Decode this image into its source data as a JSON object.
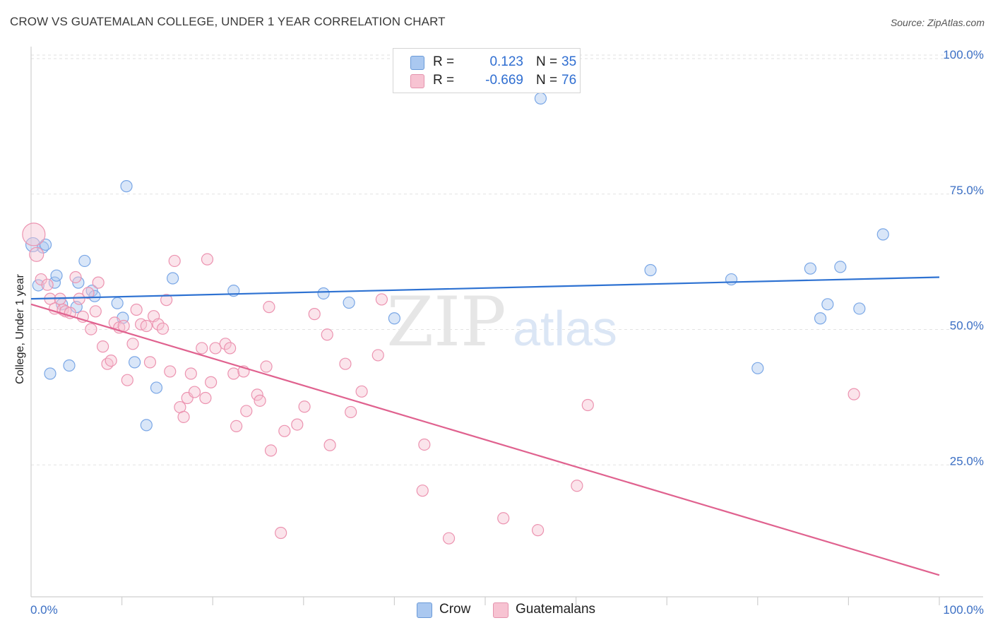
{
  "title": "CROW VS GUATEMALAN COLLEGE, UNDER 1 YEAR CORRELATION CHART",
  "source": "Source: ZipAtlas.com",
  "watermark": {
    "zip": "ZIP",
    "atlas": "atlas"
  },
  "legend": {
    "rows": [
      {
        "r_label": "R =",
        "r_value": "0.123",
        "n_label": "N =",
        "n_value": "35",
        "color": "#aac8f0",
        "border": "#6a9ad8"
      },
      {
        "r_label": "R =",
        "r_value": "-0.669",
        "n_label": "N =",
        "n_value": "76",
        "color": "#f7c3d2",
        "border": "#e493ad"
      }
    ]
  },
  "bottom_legend": [
    {
      "label": "Crow",
      "color": "#aac8f0",
      "border": "#6a9ad8"
    },
    {
      "label": "Guatemalans",
      "color": "#f7c3d2",
      "border": "#e493ad"
    }
  ],
  "chart_data": {
    "type": "scatter",
    "title": "CROW VS GUATEMALAN COLLEGE, UNDER 1 YEAR CORRELATION CHART",
    "xlabel": "",
    "ylabel": "College, Under 1 year",
    "xlim": [
      0,
      100
    ],
    "ylim": [
      0,
      100
    ],
    "x_tick_labels": [
      "0.0%",
      "100.0%"
    ],
    "y_ticks": [
      25,
      50,
      75,
      100
    ],
    "y_tick_labels": [
      "25.0%",
      "50.0%",
      "75.0%",
      "100.0%"
    ],
    "grid": true,
    "legend_position": "top-center",
    "series": [
      {
        "name": "Crow",
        "color": "#7aa7e6",
        "fill": "rgba(170,200,240,0.45)",
        "line_color": "#2e72d2",
        "trend": {
          "x0": 0,
          "y0": 55.0,
          "x1": 100,
          "y1": 59.0
        },
        "points": [
          {
            "x": 0.2,
            "y": 65.0,
            "s": 10
          },
          {
            "x": 0.8,
            "y": 57.5,
            "s": 8
          },
          {
            "x": 1.3,
            "y": 64.5,
            "s": 8
          },
          {
            "x": 1.6,
            "y": 65.0,
            "s": 8
          },
          {
            "x": 2.1,
            "y": 41.2,
            "s": 8
          },
          {
            "x": 2.6,
            "y": 58.0,
            "s": 8
          },
          {
            "x": 2.8,
            "y": 59.3,
            "s": 8
          },
          {
            "x": 3.4,
            "y": 54.0,
            "s": 8
          },
          {
            "x": 4.2,
            "y": 42.7,
            "s": 8
          },
          {
            "x": 5.0,
            "y": 53.5,
            "s": 8
          },
          {
            "x": 5.2,
            "y": 58.0,
            "s": 8
          },
          {
            "x": 5.9,
            "y": 62.0,
            "s": 8
          },
          {
            "x": 6.7,
            "y": 56.5,
            "s": 8
          },
          {
            "x": 7.0,
            "y": 55.5,
            "s": 8
          },
          {
            "x": 9.5,
            "y": 54.2,
            "s": 8
          },
          {
            "x": 10.1,
            "y": 51.5,
            "s": 8
          },
          {
            "x": 10.5,
            "y": 75.8,
            "s": 8
          },
          {
            "x": 11.4,
            "y": 43.3,
            "s": 8
          },
          {
            "x": 12.7,
            "y": 31.7,
            "s": 8
          },
          {
            "x": 13.8,
            "y": 38.6,
            "s": 8
          },
          {
            "x": 15.6,
            "y": 58.8,
            "s": 8
          },
          {
            "x": 22.3,
            "y": 56.5,
            "s": 8
          },
          {
            "x": 32.2,
            "y": 56.0,
            "s": 8
          },
          {
            "x": 35.0,
            "y": 54.3,
            "s": 8
          },
          {
            "x": 40.0,
            "y": 51.4,
            "s": 8
          },
          {
            "x": 56.1,
            "y": 92.0,
            "s": 8
          },
          {
            "x": 68.2,
            "y": 60.3,
            "s": 8
          },
          {
            "x": 77.1,
            "y": 58.6,
            "s": 8
          },
          {
            "x": 80.0,
            "y": 42.2,
            "s": 8
          },
          {
            "x": 85.8,
            "y": 60.6,
            "s": 8
          },
          {
            "x": 86.9,
            "y": 51.4,
            "s": 8
          },
          {
            "x": 87.7,
            "y": 54.0,
            "s": 8
          },
          {
            "x": 89.1,
            "y": 60.9,
            "s": 8
          },
          {
            "x": 91.2,
            "y": 53.2,
            "s": 8
          },
          {
            "x": 93.8,
            "y": 66.9,
            "s": 8
          }
        ]
      },
      {
        "name": "Guatemalans",
        "color": "#ec93b0",
        "fill": "rgba(247,195,210,0.45)",
        "line_color": "#e0628f",
        "trend": {
          "x0": 0,
          "y0": 54.0,
          "x1": 100,
          "y1": 4.0
        },
        "points": [
          {
            "x": 0.3,
            "y": 66.9,
            "s": 16
          },
          {
            "x": 0.6,
            "y": 63.2,
            "s": 10
          },
          {
            "x": 1.1,
            "y": 58.6,
            "s": 8
          },
          {
            "x": 1.8,
            "y": 57.6,
            "s": 8
          },
          {
            "x": 2.1,
            "y": 55.0,
            "s": 8
          },
          {
            "x": 2.6,
            "y": 53.2,
            "s": 8
          },
          {
            "x": 3.2,
            "y": 55.0,
            "s": 8
          },
          {
            "x": 3.5,
            "y": 53.0,
            "s": 8
          },
          {
            "x": 3.8,
            "y": 52.7,
            "s": 8
          },
          {
            "x": 4.3,
            "y": 52.4,
            "s": 8
          },
          {
            "x": 4.9,
            "y": 59.0,
            "s": 8
          },
          {
            "x": 5.3,
            "y": 55.0,
            "s": 8
          },
          {
            "x": 5.7,
            "y": 51.7,
            "s": 8
          },
          {
            "x": 6.3,
            "y": 56.1,
            "s": 8
          },
          {
            "x": 6.6,
            "y": 49.4,
            "s": 8
          },
          {
            "x": 7.1,
            "y": 52.7,
            "s": 8
          },
          {
            "x": 7.4,
            "y": 58.0,
            "s": 8
          },
          {
            "x": 7.9,
            "y": 46.2,
            "s": 8
          },
          {
            "x": 8.4,
            "y": 43.0,
            "s": 8
          },
          {
            "x": 8.8,
            "y": 43.6,
            "s": 8
          },
          {
            "x": 9.2,
            "y": 50.6,
            "s": 8
          },
          {
            "x": 9.7,
            "y": 49.7,
            "s": 8
          },
          {
            "x": 10.2,
            "y": 50.0,
            "s": 8
          },
          {
            "x": 10.6,
            "y": 40.0,
            "s": 8
          },
          {
            "x": 11.2,
            "y": 46.7,
            "s": 8
          },
          {
            "x": 11.6,
            "y": 53.0,
            "s": 8
          },
          {
            "x": 12.1,
            "y": 50.3,
            "s": 8
          },
          {
            "x": 12.7,
            "y": 50.0,
            "s": 8
          },
          {
            "x": 13.1,
            "y": 43.3,
            "s": 8
          },
          {
            "x": 13.5,
            "y": 51.8,
            "s": 8
          },
          {
            "x": 14.0,
            "y": 50.3,
            "s": 8
          },
          {
            "x": 14.5,
            "y": 49.5,
            "s": 8
          },
          {
            "x": 14.9,
            "y": 54.8,
            "s": 8
          },
          {
            "x": 15.3,
            "y": 41.6,
            "s": 8
          },
          {
            "x": 15.8,
            "y": 62.0,
            "s": 8
          },
          {
            "x": 16.4,
            "y": 35.0,
            "s": 8
          },
          {
            "x": 16.8,
            "y": 33.2,
            "s": 8
          },
          {
            "x": 17.2,
            "y": 36.7,
            "s": 8
          },
          {
            "x": 17.6,
            "y": 41.2,
            "s": 8
          },
          {
            "x": 18.0,
            "y": 37.8,
            "s": 8
          },
          {
            "x": 18.8,
            "y": 45.9,
            "s": 8
          },
          {
            "x": 19.2,
            "y": 36.7,
            "s": 8
          },
          {
            "x": 19.4,
            "y": 62.3,
            "s": 8
          },
          {
            "x": 19.8,
            "y": 39.6,
            "s": 8
          },
          {
            "x": 20.3,
            "y": 45.9,
            "s": 8
          },
          {
            "x": 21.4,
            "y": 46.7,
            "s": 8
          },
          {
            "x": 21.9,
            "y": 45.9,
            "s": 8
          },
          {
            "x": 22.3,
            "y": 41.2,
            "s": 8
          },
          {
            "x": 22.6,
            "y": 31.5,
            "s": 8
          },
          {
            "x": 23.4,
            "y": 41.6,
            "s": 8
          },
          {
            "x": 23.7,
            "y": 34.3,
            "s": 8
          },
          {
            "x": 24.9,
            "y": 37.3,
            "s": 8
          },
          {
            "x": 25.2,
            "y": 36.2,
            "s": 8
          },
          {
            "x": 25.9,
            "y": 42.5,
            "s": 8
          },
          {
            "x": 26.2,
            "y": 53.5,
            "s": 8
          },
          {
            "x": 26.4,
            "y": 27.0,
            "s": 8
          },
          {
            "x": 27.5,
            "y": 11.8,
            "s": 8
          },
          {
            "x": 27.9,
            "y": 30.6,
            "s": 8
          },
          {
            "x": 29.3,
            "y": 31.8,
            "s": 8
          },
          {
            "x": 30.1,
            "y": 35.1,
            "s": 8
          },
          {
            "x": 31.2,
            "y": 52.2,
            "s": 8
          },
          {
            "x": 32.6,
            "y": 48.4,
            "s": 8
          },
          {
            "x": 32.9,
            "y": 28.0,
            "s": 8
          },
          {
            "x": 34.6,
            "y": 43.0,
            "s": 8
          },
          {
            "x": 35.2,
            "y": 34.1,
            "s": 8
          },
          {
            "x": 36.4,
            "y": 37.9,
            "s": 8
          },
          {
            "x": 38.2,
            "y": 44.6,
            "s": 8
          },
          {
            "x": 38.6,
            "y": 54.9,
            "s": 8
          },
          {
            "x": 43.1,
            "y": 19.6,
            "s": 8
          },
          {
            "x": 43.3,
            "y": 28.1,
            "s": 8
          },
          {
            "x": 46.0,
            "y": 10.8,
            "s": 8
          },
          {
            "x": 52.0,
            "y": 14.5,
            "s": 8
          },
          {
            "x": 55.8,
            "y": 12.3,
            "s": 8
          },
          {
            "x": 60.1,
            "y": 20.5,
            "s": 8
          },
          {
            "x": 61.3,
            "y": 35.4,
            "s": 8
          },
          {
            "x": 90.6,
            "y": 37.4,
            "s": 8
          }
        ]
      }
    ]
  }
}
